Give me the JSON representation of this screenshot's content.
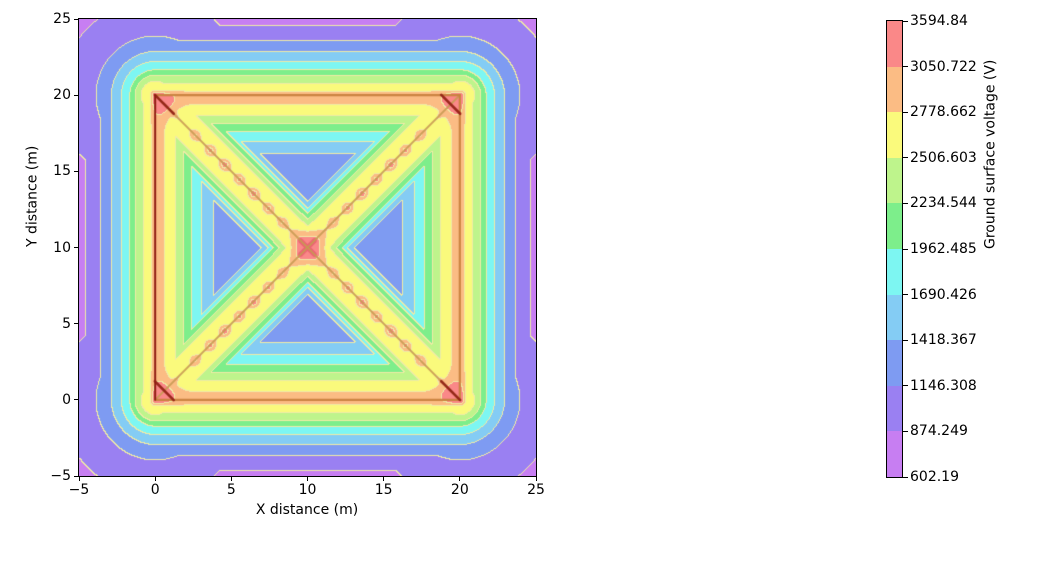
{
  "figure": {
    "background": "#ffffff"
  },
  "chart_data": {
    "type": "heatmap",
    "subtype": "filled_contour",
    "title": "",
    "xlabel": "X distance (m)",
    "ylabel": "Y distance (m)",
    "x_range": [
      -5,
      25
    ],
    "y_range": [
      -5,
      25
    ],
    "x_ticks": [
      "−5",
      "0",
      "5",
      "10",
      "15",
      "20",
      "25"
    ],
    "y_ticks": [
      "−5",
      "0",
      "5",
      "10",
      "15",
      "20",
      "25"
    ],
    "x_tick_values": [
      -5,
      0,
      5,
      10,
      15,
      20,
      25
    ],
    "y_tick_values": [
      -5,
      0,
      5,
      10,
      15,
      20,
      25
    ],
    "grid": false,
    "legend_position": "none",
    "colorbar": {
      "label": "Ground surface voltage (V)",
      "tick_labels_top_to_bottom": [
        "3594.84",
        "3050.722",
        "2778.662",
        "2506.603",
        "2234.544",
        "1962.485",
        "1690.426",
        "1418.367",
        "1146.308",
        "874.249",
        "602.19"
      ],
      "levels_low_to_high": [
        602.19,
        874.249,
        1146.308,
        1418.367,
        1690.426,
        1962.485,
        2234.544,
        2506.603,
        2778.662,
        3050.722,
        3594.84
      ],
      "segment_colors_low_to_high": [
        "#c77ef2",
        "#9a80f2",
        "#7e9bf2",
        "#84ccf4",
        "#7df6f2",
        "#7dee8b",
        "#bef48c",
        "#fafa7c",
        "#fbbc84",
        "#fa8888"
      ]
    },
    "field": {
      "description": "Ground surface potential above a buried square grounding grid: voltage is highest above the grid conductors (perimeter square plus both diagonals), peaks at the four corners and the centre, dips in the four triangular meshes, and decays smoothly outside the grid toward the plot corners.",
      "grid_bounds": [
        0,
        20
      ],
      "conductor_perimeter": [
        [
          0,
          0
        ],
        [
          20,
          0
        ],
        [
          20,
          20
        ],
        [
          0,
          20
        ]
      ],
      "conductor_diagonals": [
        [
          [
            0,
            0
          ],
          [
            20,
            20
          ]
        ],
        [
          [
            0,
            20
          ],
          [
            20,
            0
          ]
        ]
      ],
      "corner_hotspots": [
        [
          0.6,
          0.6
        ],
        [
          0.6,
          19.4
        ],
        [
          19.4,
          0.6
        ],
        [
          19.4,
          19.4
        ]
      ],
      "center_hotspot": [
        10,
        10
      ],
      "rod_positions_along_each_diagonal": [
        2.6,
        3.6,
        4.55,
        5.5,
        6.45,
        7.4,
        8.35,
        11.65,
        12.6,
        13.55,
        14.5,
        15.45,
        16.4,
        17.4
      ],
      "min_value": 602.19,
      "max_value": 3594.84
    },
    "overlay_colors": {
      "pale_contour_line": "#f0eba6",
      "perimeter_line": "#c8813e",
      "left_edge_line": "#8f1d12",
      "diagonal_line": "#c89a52",
      "corner_stroke": "#8f1d12",
      "center_cross": "#ea6673"
    }
  }
}
